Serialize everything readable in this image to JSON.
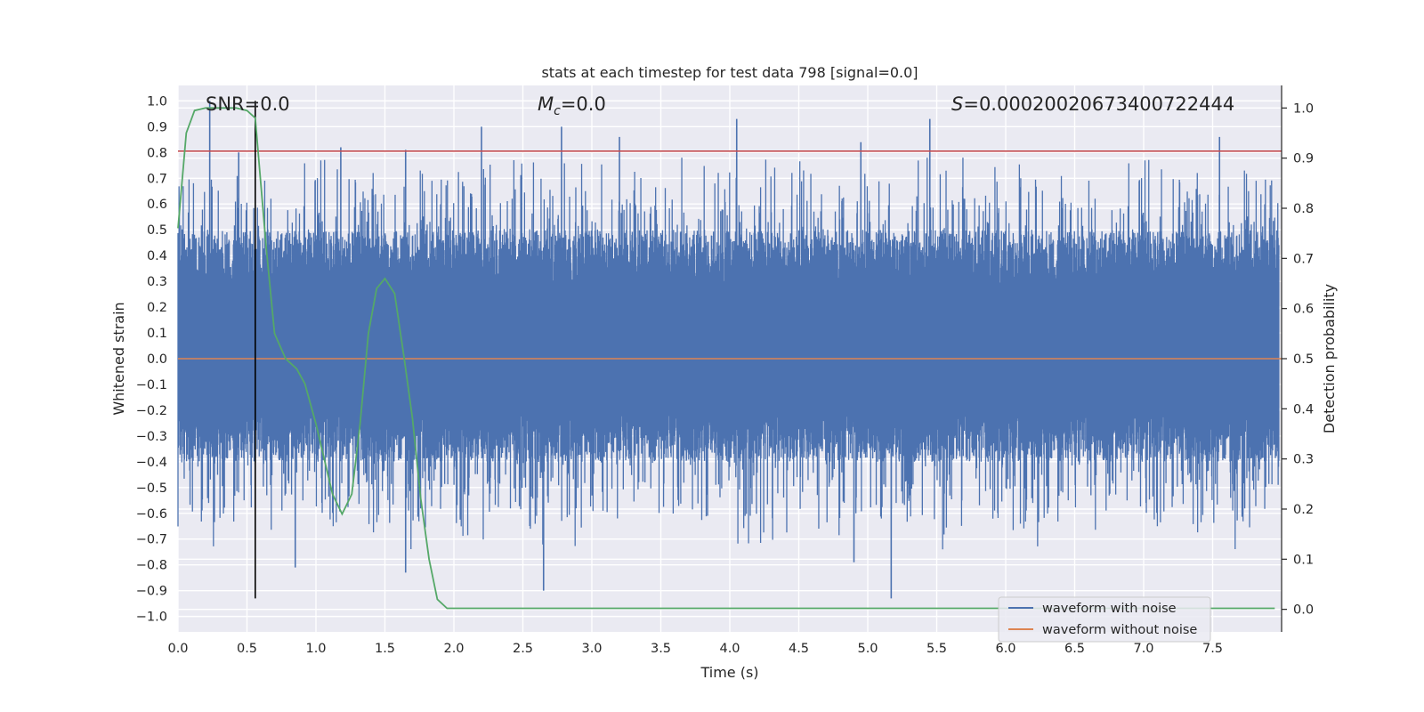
{
  "chart_data": {
    "type": "line",
    "title": "stats at each timestep for test data 798 [signal=0.0]",
    "xlabel": "Time (s)",
    "ylabel": "Whitened strain",
    "y2label": "Detection probability",
    "xlim": [
      0.0,
      8.0
    ],
    "ylim": [
      -1.06,
      1.06
    ],
    "y2lim": [
      -0.045,
      1.045
    ],
    "x_ticks": [
      "0.0",
      "0.5",
      "1.0",
      "1.5",
      "2.0",
      "2.5",
      "3.0",
      "3.5",
      "4.0",
      "4.5",
      "5.0",
      "5.5",
      "6.0",
      "6.5",
      "7.0",
      "7.5"
    ],
    "x_tick_values": [
      0.0,
      0.5,
      1.0,
      1.5,
      2.0,
      2.5,
      3.0,
      3.5,
      4.0,
      4.5,
      5.0,
      5.5,
      6.0,
      6.5,
      7.0,
      7.5
    ],
    "y_ticks": [
      "1.0",
      "0.9",
      "0.8",
      "0.7",
      "0.6",
      "0.5",
      "0.4",
      "0.3",
      "0.2",
      "0.1",
      "0.0",
      "−0.1",
      "−0.2",
      "−0.3",
      "−0.4",
      "−0.5",
      "−0.6",
      "−0.7",
      "−0.8",
      "−0.9",
      "−1.0"
    ],
    "y_tick_values": [
      1.0,
      0.9,
      0.8,
      0.7,
      0.6,
      0.5,
      0.4,
      0.3,
      0.2,
      0.1,
      0.0,
      -0.1,
      -0.2,
      -0.3,
      -0.4,
      -0.5,
      -0.6,
      -0.7,
      -0.8,
      -0.9,
      -1.0
    ],
    "y2_ticks": [
      "1.0",
      "0.9",
      "0.8",
      "0.7",
      "0.6",
      "0.5",
      "0.4",
      "0.3",
      "0.2",
      "0.1",
      "0.0"
    ],
    "y2_tick_values": [
      1.0,
      0.9,
      0.8,
      0.7,
      0.6,
      0.5,
      0.4,
      0.3,
      0.2,
      0.1,
      0.0
    ],
    "annotations": {
      "snr": "SNR=0.0",
      "mc_symbol": "M",
      "mc_sub": "c",
      "mc_value": "=0.0",
      "s_symbol": "S",
      "s_value": "=0.00020020673400722444"
    },
    "series": [
      {
        "name": "waveform with noise",
        "color": "#4c72b0",
        "kind": "noise",
        "core_range": [
          -0.2,
          0.28
        ],
        "notable_peaks": [
          [
            0.23,
            1.0
          ],
          [
            0.44,
            0.8
          ],
          [
            1.18,
            0.82
          ],
          [
            1.65,
            0.81
          ],
          [
            2.2,
            0.9
          ],
          [
            2.78,
            0.9
          ],
          [
            3.2,
            0.86
          ],
          [
            4.05,
            0.93
          ],
          [
            5.45,
            0.93
          ],
          [
            4.95,
            0.84
          ],
          [
            7.55,
            0.86
          ],
          [
            0.85,
            -0.81
          ],
          [
            1.65,
            -0.83
          ],
          [
            2.65,
            -0.9
          ],
          [
            5.17,
            -0.93
          ],
          [
            4.9,
            -0.79
          ]
        ]
      },
      {
        "name": "waveform without noise",
        "color": "#dd8452",
        "values_constant": 0.0
      },
      {
        "name": "detection probability",
        "color": "#55a868",
        "axis": "right",
        "x": [
          0.0,
          0.06,
          0.12,
          0.2,
          0.3,
          0.42,
          0.5,
          0.56,
          0.6,
          0.64,
          0.7,
          0.78,
          0.86,
          0.92,
          1.0,
          1.06,
          1.12,
          1.19,
          1.26,
          1.32,
          1.38,
          1.44,
          1.5,
          1.57,
          1.64,
          1.7,
          1.76,
          1.82,
          1.88,
          1.95,
          2.5,
          3.5,
          4.5,
          5.5,
          6.5,
          7.5,
          7.95
        ],
        "values": [
          0.76,
          0.95,
          0.995,
          1.0,
          1.0,
          1.0,
          0.995,
          0.98,
          0.85,
          0.72,
          0.55,
          0.5,
          0.48,
          0.45,
          0.37,
          0.3,
          0.23,
          0.19,
          0.23,
          0.37,
          0.55,
          0.64,
          0.66,
          0.63,
          0.5,
          0.38,
          0.22,
          0.1,
          0.02,
          0.002,
          0.002,
          0.002,
          0.002,
          0.002,
          0.002,
          0.002,
          0.002
        ]
      }
    ],
    "thresholds": [
      {
        "name": "threshold-line",
        "color": "#c44e52",
        "y": 0.805
      },
      {
        "name": "zero-line",
        "color": "#dd8452",
        "y": 0.0
      }
    ],
    "marker_line": {
      "name": "time-marker",
      "x": 0.56,
      "color": "#000000"
    },
    "legend": {
      "position": "lower-right",
      "entries": [
        {
          "label": "waveform with noise",
          "color": "#4c72b0"
        },
        {
          "label": "waveform without noise",
          "color": "#dd8452"
        }
      ]
    },
    "style": {
      "plot_bg": "#eaeaf2",
      "grid": "#ffffff"
    }
  }
}
